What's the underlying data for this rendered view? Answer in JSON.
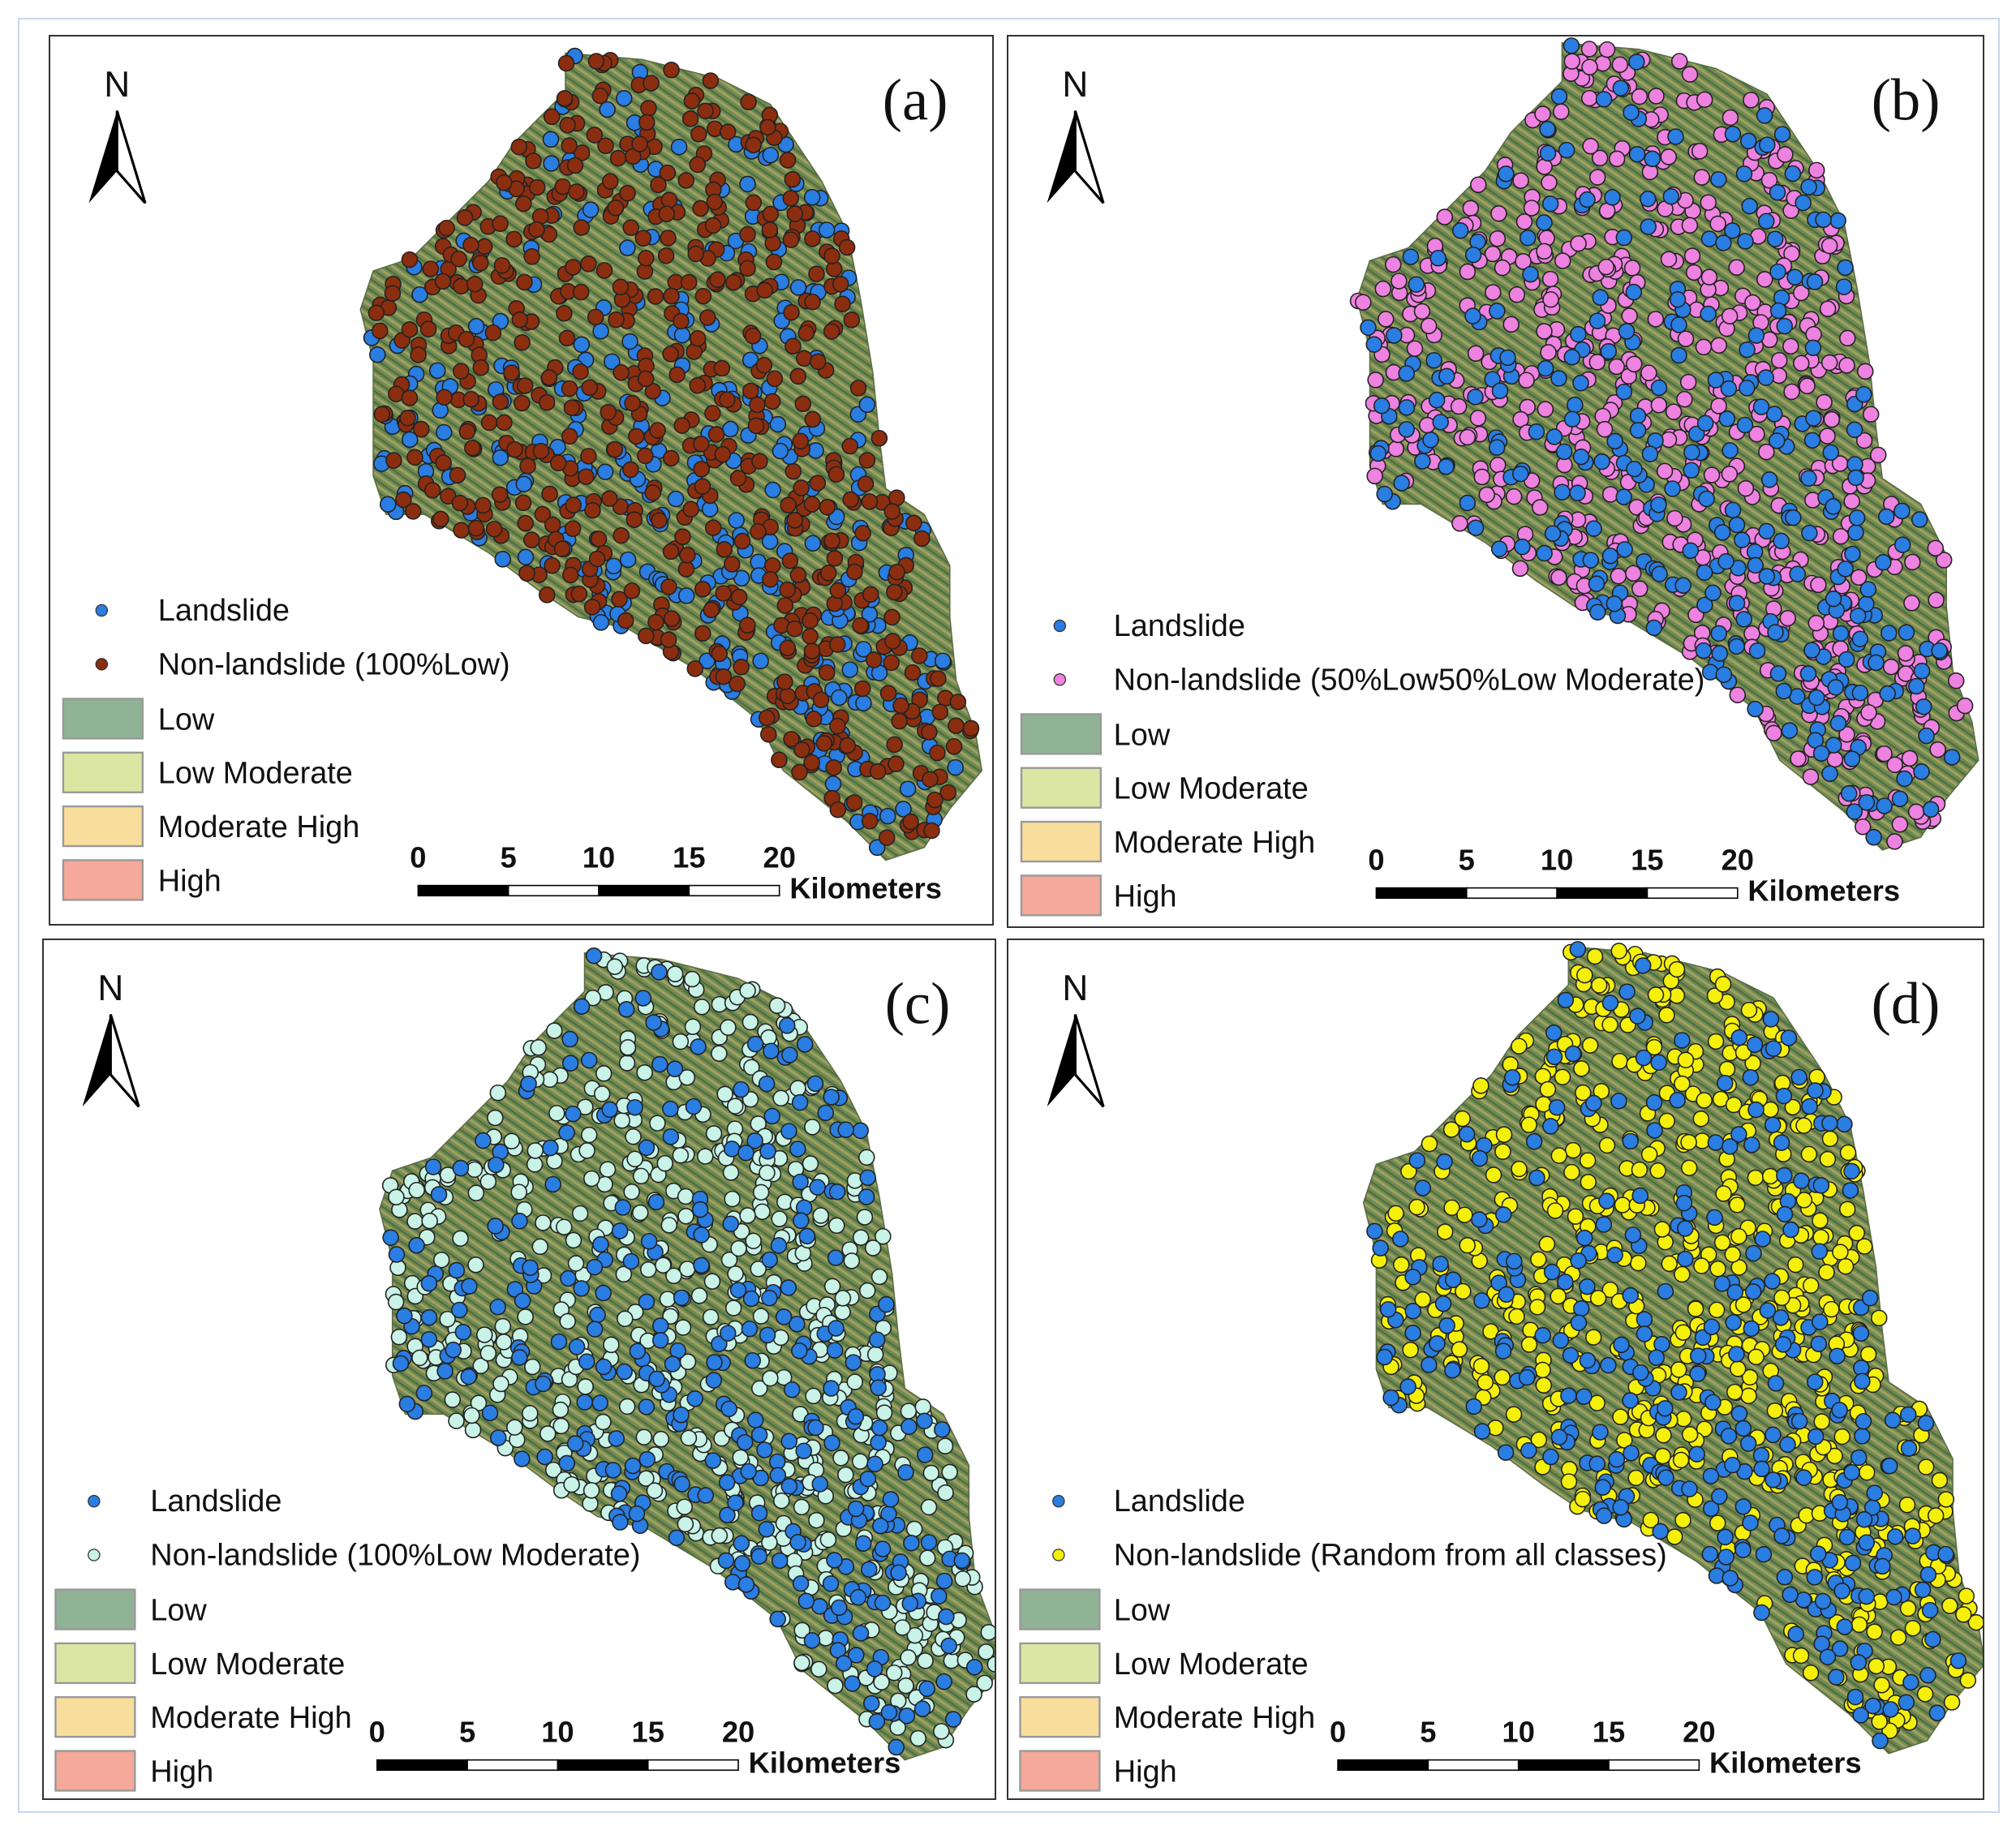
{
  "legend_classes": [
    {
      "label": "Low",
      "color": "#8fb394"
    },
    {
      "label": "Low Moderate",
      "color": "#dce6a3"
    },
    {
      "label": "Moderate High",
      "color": "#f9dd9c"
    },
    {
      "label": "High",
      "color": "#f4a99a"
    }
  ],
  "landslide": {
    "label": "Landslide",
    "color": "#2a7de1"
  },
  "north_label": "N",
  "scale_bar": {
    "ticks": [
      "0",
      "5",
      "10",
      "15",
      "20"
    ],
    "unit": "Kilometers"
  },
  "panels": [
    {
      "id": "a",
      "label": "(a)",
      "nonlandslide_label": "Non-landslide (100%Low)",
      "nonlandslide_color": "#8b2e0f"
    },
    {
      "id": "b",
      "label": "(b)",
      "nonlandslide_label": "Non-landslide (50%Low50%Low Moderate)",
      "nonlandslide_color": "#ee82e0"
    },
    {
      "id": "c",
      "label": "(c)",
      "nonlandslide_label": "Non-landslide (100%Low Moderate)",
      "nonlandslide_color": "#c8f3e6"
    },
    {
      "id": "d",
      "label": "(d)",
      "nonlandslide_label": "Non-landslide (Random from all classes)",
      "nonlandslide_color": "#f5f00a"
    }
  ]
}
